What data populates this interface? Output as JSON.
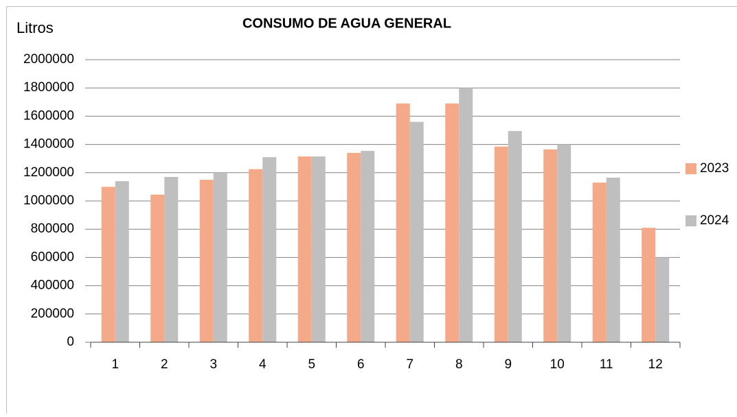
{
  "chart_data": {
    "type": "bar",
    "title": "CONSUMO DE AGUA GENERAL",
    "y_label": "Litros",
    "categories": [
      "1",
      "2",
      "3",
      "4",
      "5",
      "6",
      "7",
      "8",
      "9",
      "10",
      "11",
      "12"
    ],
    "series": [
      {
        "name": "2023",
        "color": "#f4a988",
        "values": [
          1100000,
          1045000,
          1150000,
          1225000,
          1315000,
          1340000,
          1690000,
          1690000,
          1385000,
          1365000,
          1130000,
          810000
        ]
      },
      {
        "name": "2024",
        "color": "#bfbfbf",
        "values": [
          1140000,
          1170000,
          1200000,
          1310000,
          1315000,
          1355000,
          1560000,
          1800000,
          1495000,
          1400000,
          1165000,
          600000
        ]
      }
    ],
    "ylim": [
      0,
      2000000
    ],
    "yticks": [
      0,
      200000,
      400000,
      600000,
      800000,
      1000000,
      1200000,
      1400000,
      1600000,
      1800000,
      2000000
    ],
    "grid": true,
    "legend": "right"
  }
}
